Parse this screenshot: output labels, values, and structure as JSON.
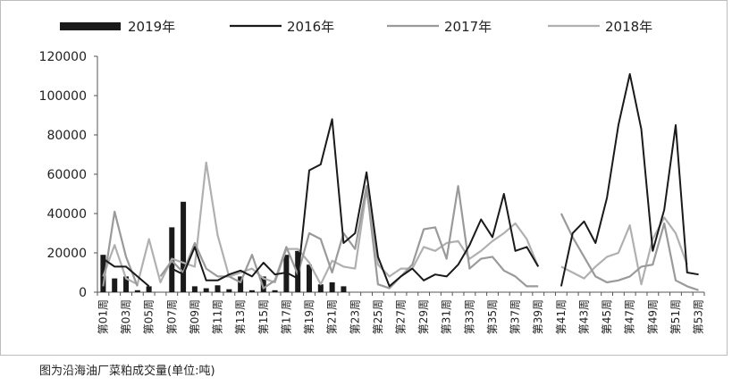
{
  "caption": "图为沿海油厂菜粕成交量(单位:吨)",
  "chart_data": {
    "type": "bar+line",
    "ylim": [
      0,
      120000
    ],
    "yticks": [
      0,
      20000,
      40000,
      60000,
      80000,
      100000,
      120000
    ],
    "ytick_labels": [
      "0",
      "20000",
      "40000",
      "60000",
      "80000",
      "100000",
      "120000"
    ],
    "weeks": 53,
    "xtick_labels": [
      "第01周",
      "第03周",
      "第05周",
      "第07周",
      "第09周",
      "第11周",
      "第13周",
      "第15周",
      "第17周",
      "第19周",
      "第21周",
      "第23周",
      "第25周",
      "第27周",
      "第29周",
      "第31周",
      "第33周",
      "第35周",
      "第37周",
      "第39周",
      "第41周",
      "第43周",
      "第45周",
      "第47周",
      "第49周",
      "第51周",
      "第53周"
    ],
    "legend": [
      "2019年",
      "2016年",
      "2017年",
      "2018年"
    ],
    "series": [
      {
        "name": "2019年",
        "kind": "bar",
        "color": "#1a1a1a",
        "values": [
          19000,
          7000,
          8000,
          1000,
          3000,
          null,
          33000,
          46000,
          3000,
          2000,
          3500,
          1500,
          8000,
          1000,
          8000,
          1000,
          19000,
          21000,
          14000,
          4000,
          5000,
          3000,
          null,
          null,
          null,
          null,
          null,
          null,
          null,
          null,
          null,
          null,
          null,
          null,
          null,
          null,
          null,
          null,
          null,
          null,
          null,
          null,
          null,
          null,
          null,
          null,
          null,
          null,
          null,
          null,
          null,
          null,
          null
        ]
      },
      {
        "name": "2016年",
        "kind": "line",
        "color": "#1a1a1a",
        "values": [
          17000,
          13000,
          13000,
          8000,
          3000,
          null,
          12000,
          9000,
          23000,
          6000,
          6000,
          9000,
          11000,
          8000,
          15000,
          9000,
          10000,
          7000,
          62000,
          65000,
          88000,
          25000,
          30000,
          61000,
          18000,
          3000,
          8000,
          12000,
          6000,
          9000,
          8000,
          14000,
          24000,
          37000,
          28000,
          50000,
          21000,
          23000,
          13000,
          null,
          3000,
          30000,
          36000,
          25000,
          48000,
          85000,
          111000,
          83000,
          21000,
          42000,
          85000,
          10000,
          9000
        ]
      },
      {
        "name": "2017年",
        "kind": "line",
        "color": "#9a9a9a",
        "values": [
          3000,
          41000,
          18000,
          3000,
          null,
          8000,
          16000,
          10000,
          25000,
          12000,
          8000,
          8000,
          5000,
          19000,
          2000,
          6000,
          23000,
          9000,
          30000,
          27000,
          10000,
          30000,
          22000,
          54000,
          4000,
          2000,
          8000,
          14000,
          32000,
          33000,
          17000,
          54000,
          12000,
          17000,
          18000,
          11000,
          8000,
          3000,
          3000,
          null,
          40000,
          28000,
          18000,
          8000,
          5000,
          6000,
          8000,
          13000,
          14000,
          35000,
          6000,
          3000,
          1000
        ]
      },
      {
        "name": "2018年",
        "kind": "line",
        "color": "#b0b0b0",
        "values": [
          8000,
          24000,
          7000,
          4000,
          27000,
          5000,
          17000,
          15000,
          13000,
          66000,
          29000,
          8000,
          10000,
          12000,
          7000,
          5000,
          22000,
          22000,
          15000,
          4000,
          16000,
          13000,
          12000,
          52000,
          14000,
          8000,
          12000,
          12000,
          23000,
          21000,
          25000,
          26000,
          17000,
          21000,
          26000,
          30000,
          35000,
          27000,
          13000,
          null,
          13000,
          10000,
          7000,
          13000,
          18000,
          20000,
          34000,
          4000,
          27000,
          38000,
          30000,
          14000,
          null
        ]
      }
    ]
  }
}
